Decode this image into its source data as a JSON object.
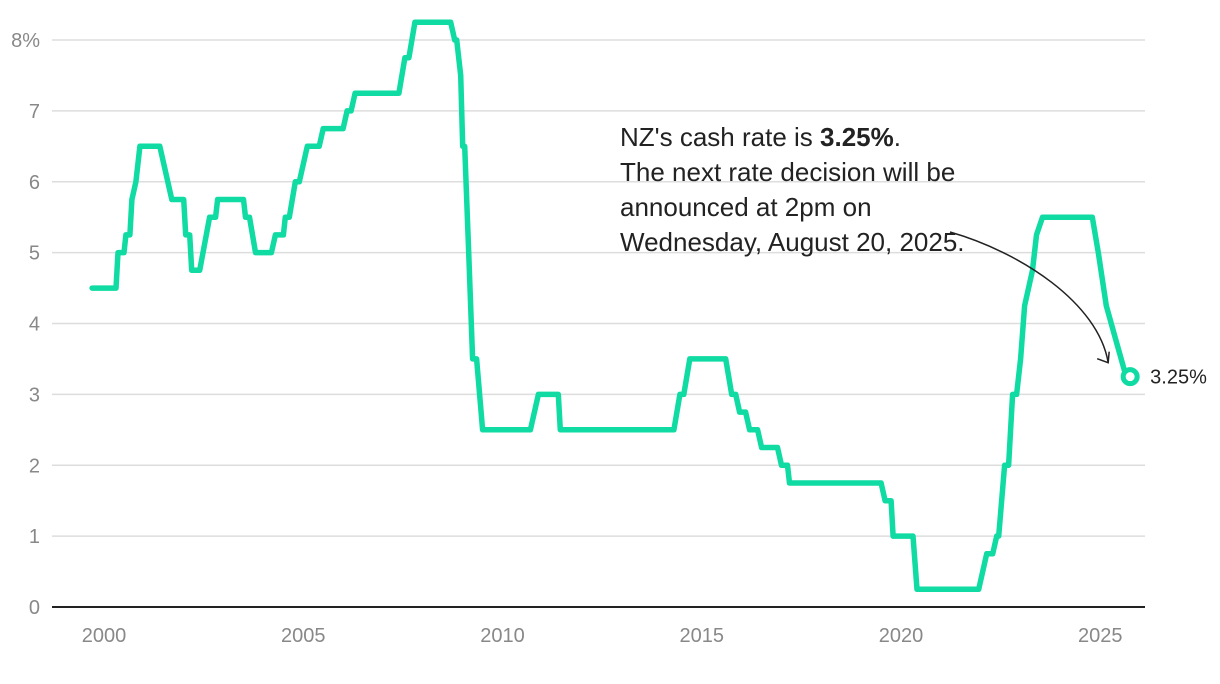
{
  "chart_data": {
    "type": "line",
    "title": "",
    "xlabel": "",
    "ylabel": "",
    "x_ticks": [
      "2000",
      "2005",
      "2010",
      "2015",
      "2020",
      "2025"
    ],
    "y_ticks": [
      "0",
      "1",
      "2",
      "3",
      "4",
      "5",
      "6",
      "7",
      "8%"
    ],
    "xlim": [
      1999.4,
      2026.7
    ],
    "ylim": [
      0,
      8.25
    ],
    "grid": true,
    "colors": {
      "series": "#0fdba3",
      "grid": "#dddddd",
      "axis": "#222222",
      "tick_text": "#888888"
    },
    "series": [
      {
        "points": [
          [
            1999.5,
            4.5
          ],
          [
            2000.1,
            4.5
          ],
          [
            2000.15,
            5.0
          ],
          [
            2000.3,
            5.0
          ],
          [
            2000.35,
            5.25
          ],
          [
            2000.45,
            5.25
          ],
          [
            2000.5,
            5.75
          ],
          [
            2000.6,
            6.0
          ],
          [
            2000.7,
            6.5
          ],
          [
            2001.0,
            6.5
          ],
          [
            2001.2,
            6.5
          ],
          [
            2001.5,
            5.75
          ],
          [
            2001.8,
            5.75
          ],
          [
            2001.85,
            5.25
          ],
          [
            2001.95,
            5.25
          ],
          [
            2002.0,
            4.75
          ],
          [
            2002.2,
            4.75
          ],
          [
            2002.45,
            5.5
          ],
          [
            2002.6,
            5.5
          ],
          [
            2002.65,
            5.75
          ],
          [
            2003.0,
            5.75
          ],
          [
            2003.3,
            5.75
          ],
          [
            2003.35,
            5.5
          ],
          [
            2003.45,
            5.5
          ],
          [
            2003.6,
            5.0
          ],
          [
            2004.0,
            5.0
          ],
          [
            2004.1,
            5.25
          ],
          [
            2004.3,
            5.25
          ],
          [
            2004.35,
            5.5
          ],
          [
            2004.45,
            5.5
          ],
          [
            2004.6,
            6.0
          ],
          [
            2004.7,
            6.0
          ],
          [
            2004.9,
            6.5
          ],
          [
            2005.2,
            6.5
          ],
          [
            2005.3,
            6.75
          ],
          [
            2005.8,
            6.75
          ],
          [
            2005.9,
            7.0
          ],
          [
            2006.0,
            7.0
          ],
          [
            2006.1,
            7.25
          ],
          [
            2006.8,
            7.25
          ],
          [
            2007.2,
            7.25
          ],
          [
            2007.35,
            7.75
          ],
          [
            2007.45,
            7.75
          ],
          [
            2007.6,
            8.25
          ],
          [
            2008.5,
            8.25
          ],
          [
            2008.6,
            8.0
          ],
          [
            2008.65,
            8.0
          ],
          [
            2008.75,
            7.5
          ],
          [
            2008.8,
            6.5
          ],
          [
            2008.85,
            6.5
          ],
          [
            2008.95,
            5.0
          ],
          [
            2009.05,
            3.5
          ],
          [
            2009.15,
            3.5
          ],
          [
            2009.3,
            2.5
          ],
          [
            2010.0,
            2.5
          ],
          [
            2010.5,
            2.5
          ],
          [
            2010.6,
            2.75
          ],
          [
            2010.7,
            3.0
          ],
          [
            2011.2,
            3.0
          ],
          [
            2011.25,
            2.5
          ],
          [
            2012.0,
            2.5
          ],
          [
            2014.1,
            2.5
          ],
          [
            2014.25,
            3.0
          ],
          [
            2014.35,
            3.0
          ],
          [
            2014.5,
            3.5
          ],
          [
            2015.4,
            3.5
          ],
          [
            2015.55,
            3.0
          ],
          [
            2015.65,
            3.0
          ],
          [
            2015.75,
            2.75
          ],
          [
            2015.9,
            2.75
          ],
          [
            2016.0,
            2.5
          ],
          [
            2016.2,
            2.5
          ],
          [
            2016.3,
            2.25
          ],
          [
            2016.7,
            2.25
          ],
          [
            2016.8,
            2.0
          ],
          [
            2016.95,
            2.0
          ],
          [
            2017.0,
            1.75
          ],
          [
            2018.0,
            1.75
          ],
          [
            2019.3,
            1.75
          ],
          [
            2019.4,
            1.5
          ],
          [
            2019.55,
            1.5
          ],
          [
            2019.6,
            1.0
          ],
          [
            2020.1,
            1.0
          ],
          [
            2020.2,
            0.25
          ],
          [
            2021.0,
            0.25
          ],
          [
            2021.75,
            0.25
          ],
          [
            2021.95,
            0.75
          ],
          [
            2022.1,
            0.75
          ],
          [
            2022.2,
            1.0
          ],
          [
            2022.25,
            1.0
          ],
          [
            2022.4,
            2.0
          ],
          [
            2022.5,
            2.0
          ],
          [
            2022.6,
            3.0
          ],
          [
            2022.7,
            3.0
          ],
          [
            2022.8,
            3.5
          ],
          [
            2022.9,
            4.25
          ],
          [
            2023.1,
            4.75
          ],
          [
            2023.2,
            5.25
          ],
          [
            2023.35,
            5.5
          ],
          [
            2024.0,
            5.5
          ],
          [
            2024.6,
            5.5
          ],
          [
            2024.75,
            5.0
          ],
          [
            2024.95,
            4.25
          ],
          [
            2025.2,
            3.75
          ],
          [
            2025.45,
            3.25
          ],
          [
            2025.55,
            3.25
          ]
        ]
      }
    ],
    "end_point": {
      "x": 2025.55,
      "y": 3.25,
      "label": "3.25%"
    },
    "annotation": {
      "lead": "NZ's cash rate is ",
      "value": "3.25%",
      "after_value": ".",
      "rest": "The next rate decision will be announced at 2pm on Wednesday, August 20, 2025."
    }
  }
}
